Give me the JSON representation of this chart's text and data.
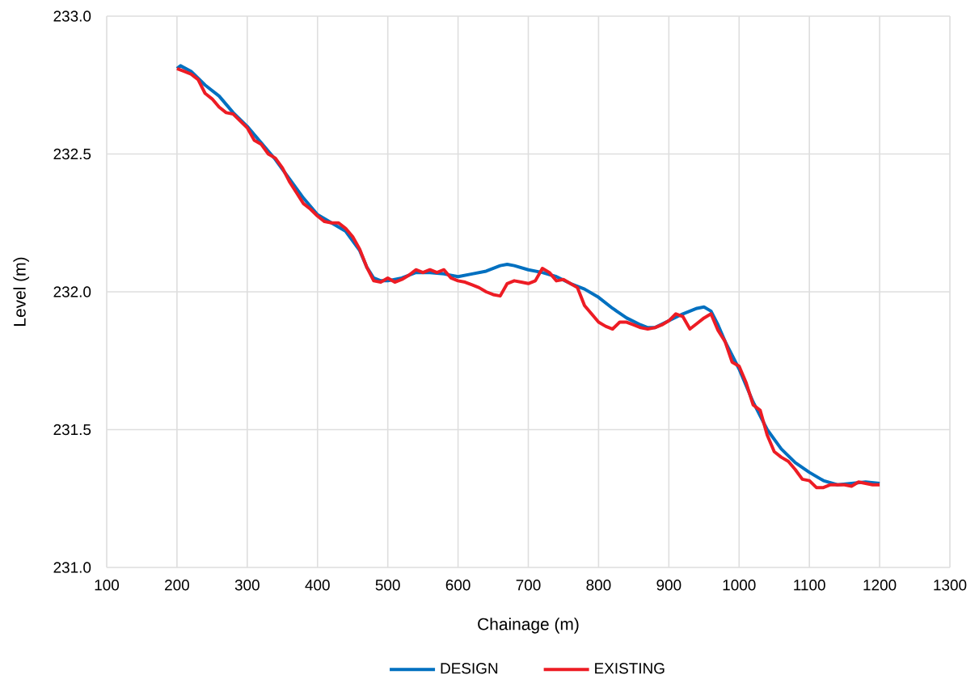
{
  "chart_data": {
    "type": "line",
    "xlabel": "Chainage (m)",
    "ylabel": "Level (m)",
    "xlim": [
      100,
      1300
    ],
    "xticks": [
      100,
      200,
      300,
      400,
      500,
      600,
      700,
      800,
      900,
      1000,
      1100,
      1200,
      1300
    ],
    "ylim": [
      231.0,
      233.0
    ],
    "yticks": [
      {
        "value": 231.0,
        "label": "231.0"
      },
      {
        "value": 231.5,
        "label": "231.5"
      },
      {
        "value": 232.0,
        "label": "232.0"
      },
      {
        "value": 232.5,
        "label": "232.5"
      },
      {
        "value": 233.0,
        "label": "233.0"
      }
    ],
    "grid": true,
    "legend": "bottom",
    "series": [
      {
        "name": "DESIGN",
        "color": "#0070c0",
        "x": [
          200,
          205,
          220,
          240,
          260,
          280,
          300,
          320,
          340,
          360,
          380,
          400,
          420,
          440,
          460,
          470,
          480,
          490,
          500,
          520,
          540,
          560,
          580,
          600,
          620,
          640,
          660,
          670,
          680,
          700,
          720,
          740,
          760,
          780,
          800,
          820,
          840,
          860,
          870,
          880,
          900,
          920,
          940,
          950,
          960,
          970,
          980,
          1000,
          1020,
          1040,
          1060,
          1080,
          1100,
          1120,
          1140,
          1160,
          1180,
          1200
        ],
        "values": [
          232.81,
          232.82,
          232.8,
          232.75,
          232.71,
          232.65,
          232.6,
          232.54,
          232.48,
          232.41,
          232.34,
          232.28,
          232.25,
          232.22,
          232.15,
          232.09,
          232.05,
          232.04,
          232.04,
          232.05,
          232.07,
          232.07,
          232.065,
          232.055,
          232.065,
          232.075,
          232.095,
          232.1,
          232.095,
          232.08,
          232.07,
          232.055,
          232.03,
          232.01,
          231.98,
          231.94,
          231.905,
          231.88,
          231.87,
          231.87,
          231.895,
          231.92,
          231.94,
          231.945,
          231.93,
          231.88,
          231.82,
          231.72,
          231.6,
          231.5,
          231.43,
          231.38,
          231.345,
          231.315,
          231.3,
          231.305,
          231.31,
          231.305
        ]
      },
      {
        "name": "EXISTING",
        "color": "#ed1c24",
        "x": [
          200,
          210,
          220,
          230,
          240,
          250,
          260,
          270,
          280,
          290,
          300,
          310,
          320,
          330,
          340,
          350,
          360,
          370,
          380,
          390,
          400,
          410,
          420,
          430,
          440,
          450,
          460,
          470,
          480,
          490,
          500,
          510,
          520,
          530,
          540,
          550,
          560,
          570,
          580,
          590,
          600,
          610,
          620,
          630,
          640,
          650,
          660,
          670,
          680,
          690,
          700,
          710,
          720,
          730,
          740,
          750,
          760,
          770,
          780,
          790,
          800,
          810,
          820,
          830,
          840,
          850,
          860,
          870,
          880,
          890,
          900,
          910,
          920,
          930,
          940,
          950,
          960,
          970,
          980,
          990,
          1000,
          1010,
          1020,
          1030,
          1040,
          1050,
          1060,
          1070,
          1080,
          1090,
          1100,
          1110,
          1120,
          1130,
          1140,
          1150,
          1160,
          1170,
          1180,
          1190,
          1200
        ],
        "values": [
          232.81,
          232.8,
          232.79,
          232.77,
          232.72,
          232.7,
          232.67,
          232.65,
          232.645,
          232.62,
          232.595,
          232.55,
          232.535,
          232.5,
          232.485,
          232.45,
          232.4,
          232.36,
          232.32,
          232.3,
          232.275,
          232.255,
          232.25,
          232.25,
          232.23,
          232.2,
          232.155,
          232.09,
          232.04,
          232.035,
          232.05,
          232.035,
          232.045,
          232.06,
          232.08,
          232.07,
          232.08,
          232.07,
          232.08,
          232.05,
          232.04,
          232.035,
          232.025,
          232.015,
          232.0,
          231.99,
          231.985,
          232.03,
          232.04,
          232.035,
          232.03,
          232.04,
          232.085,
          232.07,
          232.04,
          232.045,
          232.03,
          232.015,
          231.95,
          231.92,
          231.89,
          231.875,
          231.865,
          231.89,
          231.89,
          231.88,
          231.87,
          231.865,
          231.87,
          231.88,
          231.895,
          231.92,
          231.91,
          231.865,
          231.885,
          231.905,
          231.92,
          231.86,
          231.82,
          231.745,
          231.73,
          231.67,
          231.59,
          231.57,
          231.48,
          231.42,
          231.4,
          231.385,
          231.355,
          231.32,
          231.315,
          231.29,
          231.29,
          231.3,
          231.3,
          231.3,
          231.295,
          231.31,
          231.305,
          231.3,
          231.3
        ]
      }
    ]
  }
}
